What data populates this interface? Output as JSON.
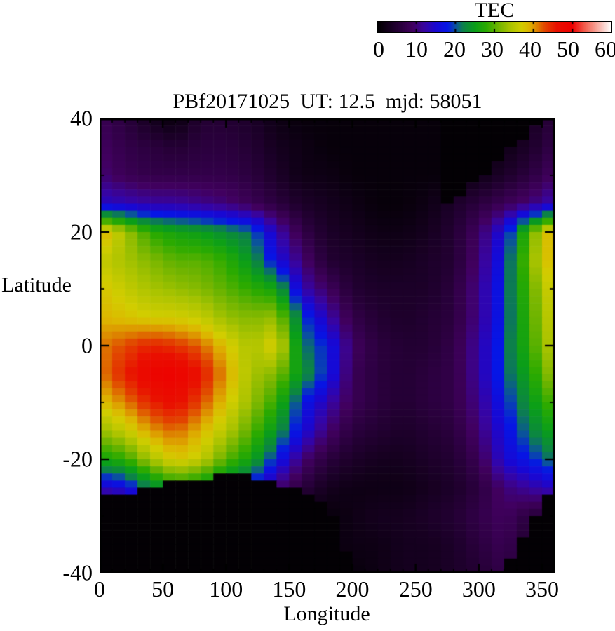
{
  "colorbar": {
    "title": "TEC",
    "tick_labels": [
      "0",
      "10",
      "20",
      "30",
      "40",
      "50",
      "60"
    ],
    "min": 0,
    "max": 60
  },
  "plot": {
    "title": "PBf20171025  UT: 12.5  mjd: 58051",
    "xlabel": "Longitude",
    "ylabel": "Latitude",
    "x_tick_labels": [
      "0",
      "50",
      "100",
      "150",
      "200",
      "250",
      "300",
      "350"
    ],
    "x_tick_values": [
      0,
      50,
      100,
      150,
      200,
      250,
      300,
      350
    ],
    "x_minor_step": 10,
    "y_tick_labels": [
      "40",
      "20",
      "0",
      "-20",
      "-40"
    ],
    "y_tick_values": [
      40,
      20,
      0,
      -20,
      -40
    ],
    "y_minor_step": 10
  },
  "chart_data": {
    "type": "heatmap",
    "title": "PBf20171025  UT: 12.5  mjd: 58051",
    "xlabel": "Longitude",
    "ylabel": "Latitude",
    "colorbar_label": "TEC",
    "x_range": [
      0,
      360
    ],
    "y_range": [
      -40,
      40
    ],
    "value_range": [
      0,
      60
    ],
    "cell_deg": [
      10,
      1.25
    ],
    "grid_lon": [
      0,
      20,
      40,
      60,
      80,
      100,
      120,
      140,
      160,
      180,
      200,
      220,
      240,
      260,
      280,
      300,
      320,
      340,
      360
    ],
    "grid_lat": [
      40,
      35,
      30,
      25,
      20,
      15,
      10,
      5,
      0,
      -5,
      -10,
      -15,
      -20,
      -25,
      -30,
      -35,
      -40
    ],
    "values_tec": [
      [
        8,
        6,
        3,
        1,
        5,
        5,
        4,
        2,
        1,
        1,
        1,
        1,
        1,
        1,
        1,
        1,
        1,
        3,
        6
      ],
      [
        9,
        7,
        6,
        5,
        6,
        6,
        5,
        3,
        2,
        1,
        1,
        1,
        1,
        1,
        1,
        1,
        2,
        4,
        7
      ],
      [
        10,
        8,
        7,
        7,
        7,
        7,
        6,
        4,
        2,
        2,
        1,
        1,
        1,
        1,
        1,
        2,
        4,
        6,
        9
      ],
      [
        14,
        13,
        12,
        12,
        11,
        10,
        8,
        6,
        4,
        3,
        2,
        1,
        1,
        2,
        4,
        6,
        8,
        10,
        13
      ],
      [
        40,
        34,
        28,
        26,
        25,
        23,
        21,
        13,
        7,
        4,
        3,
        2,
        2,
        3,
        5,
        9,
        16,
        30,
        41
      ],
      [
        36,
        34,
        32,
        30,
        30,
        28,
        24,
        16,
        10,
        5,
        4,
        3,
        3,
        4,
        5,
        10,
        18,
        32,
        40
      ],
      [
        38,
        36,
        34,
        33,
        32,
        30,
        28,
        26,
        13,
        9,
        5,
        4,
        4,
        4,
        6,
        11,
        19,
        30,
        38
      ],
      [
        39,
        38,
        37,
        37,
        36,
        33,
        32,
        33,
        20,
        13,
        7,
        5,
        4,
        5,
        6,
        11,
        19,
        29,
        37
      ],
      [
        41,
        43,
        45,
        44,
        42,
        38,
        34,
        38,
        22,
        18,
        9,
        6,
        5,
        5,
        7,
        12,
        20,
        28,
        36
      ],
      [
        41,
        45,
        49,
        50,
        46,
        40,
        34,
        32,
        24,
        18,
        8,
        6,
        5,
        6,
        7,
        12,
        20,
        26,
        34
      ],
      [
        38,
        41,
        45,
        47,
        43,
        38,
        33,
        28,
        18,
        13,
        8,
        6,
        5,
        6,
        7,
        11,
        18,
        24,
        30
      ],
      [
        33,
        36,
        40,
        42,
        39,
        35,
        30,
        24,
        16,
        10,
        6,
        5,
        4,
        5,
        6,
        10,
        16,
        22,
        26
      ],
      [
        26,
        28,
        34,
        38,
        36,
        30,
        26,
        18,
        10,
        6,
        4,
        3,
        3,
        4,
        5,
        8,
        15,
        18,
        22
      ],
      [
        14,
        16,
        22,
        26,
        24,
        20,
        17,
        10,
        6,
        3,
        2,
        2,
        2,
        3,
        4,
        6,
        10,
        12,
        14
      ],
      [
        1,
        1,
        1,
        1,
        1,
        1,
        1,
        1,
        1,
        1,
        2,
        3,
        3,
        4,
        5,
        7,
        9,
        6,
        4
      ],
      [
        1,
        1,
        1,
        1,
        1,
        1,
        1,
        1,
        1,
        1,
        2,
        2,
        3,
        3,
        4,
        6,
        8,
        4,
        2
      ],
      [
        0,
        0,
        0,
        0,
        0,
        0,
        0,
        0,
        0,
        1,
        1,
        2,
        3,
        3,
        4,
        5,
        7,
        3,
        1
      ]
    ],
    "masked_value": 0.4,
    "masks": {
      "bottom_left": {
        "max_lon": 200,
        "boundary": [
          [
            0,
            -25.5
          ],
          [
            10,
            -26.3
          ],
          [
            28,
            -26.3
          ],
          [
            33,
            -25.2
          ],
          [
            52,
            -25.0
          ],
          [
            58,
            -23.6
          ],
          [
            85,
            -23.4
          ],
          [
            90,
            -22.9
          ],
          [
            115,
            -22.9
          ],
          [
            122,
            -23.5
          ],
          [
            140,
            -24.3
          ],
          [
            155,
            -25.2
          ],
          [
            170,
            -26.5
          ],
          [
            182,
            -28.5
          ],
          [
            192,
            -33
          ],
          [
            200,
            -40
          ]
        ]
      },
      "top_right": {
        "line": [
          [
            272,
            24
          ],
          [
            352,
            40
          ]
        ]
      },
      "bottom_right": {
        "line": [
          [
            318,
            -40
          ],
          [
            360,
            -24.5
          ]
        ]
      }
    },
    "colormap_stops": [
      [
        0,
        "#000000"
      ],
      [
        5,
        "#230033"
      ],
      [
        9,
        "#41005f"
      ],
      [
        12,
        "#3804a0"
      ],
      [
        15,
        "#1907d2"
      ],
      [
        18,
        "#0516e6"
      ],
      [
        20,
        "#0a50a0"
      ],
      [
        22,
        "#0c8248"
      ],
      [
        25,
        "#0a9e19"
      ],
      [
        28,
        "#2baa00"
      ],
      [
        31,
        "#6fb400"
      ],
      [
        34,
        "#a9c300"
      ],
      [
        37,
        "#d2cd00"
      ],
      [
        39,
        "#ddb400"
      ],
      [
        41,
        "#dd8000"
      ],
      [
        43,
        "#e24400"
      ],
      [
        46,
        "#e91000"
      ],
      [
        50,
        "#ee0000"
      ],
      [
        53,
        "#f25848"
      ],
      [
        56,
        "#f79e92"
      ],
      [
        60,
        "#ffffff"
      ]
    ]
  }
}
